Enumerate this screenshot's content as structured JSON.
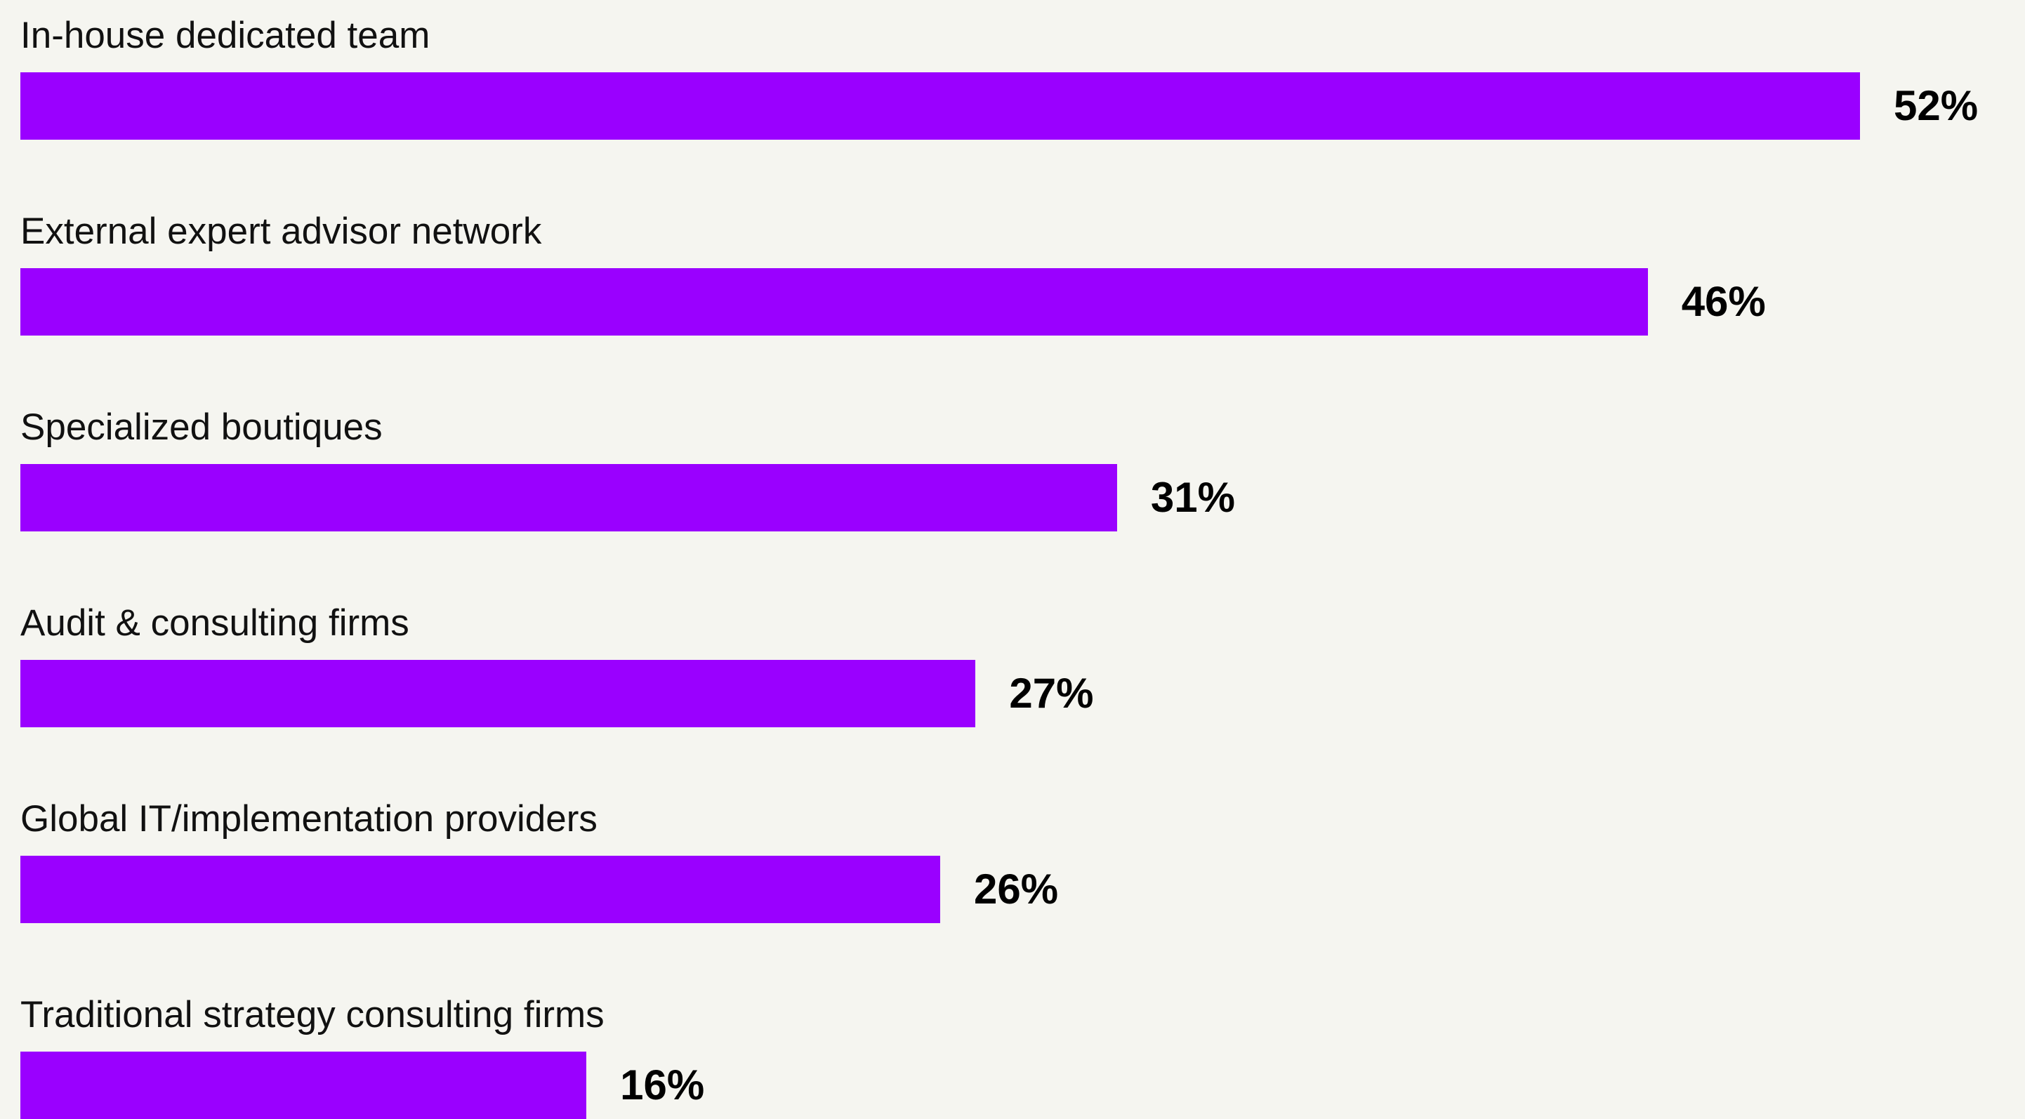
{
  "chart_data": {
    "type": "bar",
    "orientation": "horizontal",
    "categories": [
      "In-house dedicated team",
      "External expert advisor network",
      "Specialized boutiques",
      "Audit & consulting firms",
      "Global IT/implementation providers",
      "Traditional strategy consulting firms"
    ],
    "values": [
      52,
      46,
      31,
      27,
      26,
      16
    ],
    "value_labels": [
      "52%",
      "46%",
      "31%",
      "27%",
      "26%",
      "16%"
    ],
    "unit": "%",
    "xlim": [
      0,
      52
    ],
    "grid": false,
    "legend": "none"
  },
  "colors": {
    "bar": "#9a00ff",
    "background": "#f5f5f0",
    "label_text": "#111111",
    "value_text": "#000000"
  }
}
